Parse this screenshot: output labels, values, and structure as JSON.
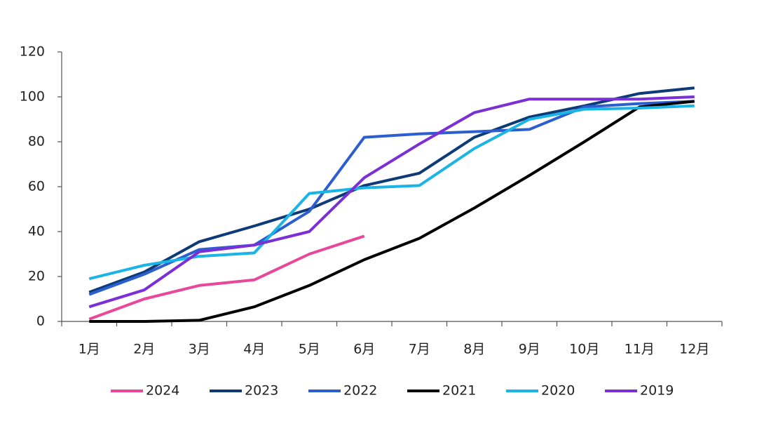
{
  "chart_data": {
    "type": "line",
    "categories": [
      "1月",
      "2月",
      "3月",
      "4月",
      "5月",
      "6月",
      "7月",
      "8月",
      "9月",
      "10月",
      "11月",
      "12月"
    ],
    "ylim": [
      0,
      120
    ],
    "yticks": [
      0,
      20,
      40,
      60,
      80,
      100,
      120
    ],
    "legend": "bottom",
    "series": [
      {
        "name": "2024",
        "color": "#e8479a",
        "values": [
          1,
          10,
          16,
          18.5,
          30,
          38,
          null,
          null,
          null,
          null,
          null,
          null
        ]
      },
      {
        "name": "2023",
        "color": "#0d3b78",
        "values": [
          13,
          22,
          35.5,
          42.5,
          50,
          60.5,
          66,
          82,
          91,
          96,
          101.5,
          104
        ]
      },
      {
        "name": "2022",
        "color": "#2b5fcf",
        "values": [
          12,
          21,
          32,
          34,
          49,
          82,
          83.5,
          84.5,
          85.5,
          95.5,
          97,
          98
        ]
      },
      {
        "name": "2021",
        "color": "#000000",
        "values": [
          0,
          0,
          0.5,
          6.5,
          16,
          27.5,
          37,
          50.5,
          65,
          80,
          95.5,
          98
        ]
      },
      {
        "name": "2020",
        "color": "#1ab4e6",
        "values": [
          19,
          25,
          29,
          30.5,
          57,
          59.5,
          60.5,
          77,
          90,
          94.5,
          95,
          96
        ]
      },
      {
        "name": "2019",
        "color": "#7b2fd6",
        "values": [
          6.5,
          14,
          31,
          34,
          40,
          64,
          79,
          93,
          99,
          99,
          99,
          100
        ]
      }
    ]
  }
}
